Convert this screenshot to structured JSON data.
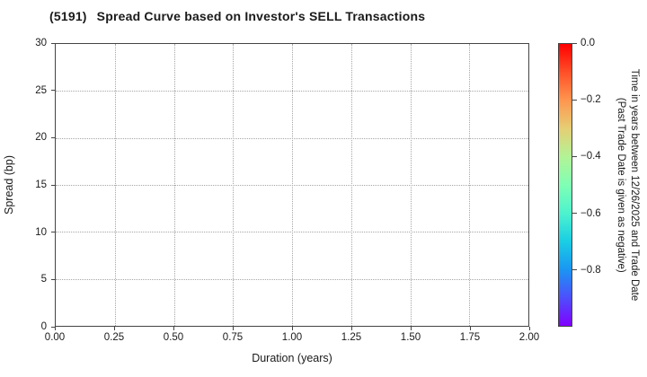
{
  "chart_data": {
    "type": "scatter",
    "title_code": "(5191)",
    "title_text": "Spread Curve based on Investor's SELL Transactions",
    "xlabel": "Duration (years)",
    "ylabel": "Spread (bp)",
    "xlim": [
      0.0,
      2.0
    ],
    "ylim": [
      0,
      30
    ],
    "xticks": [
      0.0,
      0.25,
      0.5,
      0.75,
      1.0,
      1.25,
      1.5,
      1.75,
      2.0
    ],
    "xtick_labels": [
      "0.00",
      "0.25",
      "0.50",
      "0.75",
      "1.00",
      "1.25",
      "1.50",
      "1.75",
      "2.00"
    ],
    "yticks": [
      0,
      5,
      10,
      15,
      20,
      25,
      30
    ],
    "ytick_labels": [
      "0",
      "5",
      "10",
      "15",
      "20",
      "25",
      "30"
    ],
    "grid": true,
    "grid_style": "dotted",
    "points": [],
    "colorbar": {
      "label_line1": "Time in years between 12/26/2025 and Trade Date",
      "label_line2": "(Past Trade Date is given as negative)",
      "range": [
        0.0,
        -1.0
      ],
      "tick_values": [
        0.0,
        -0.2,
        -0.4,
        -0.6,
        -0.8
      ],
      "tick_labels": [
        "0.0",
        "−0.2",
        "−0.4",
        "−0.6",
        "−0.8"
      ],
      "colormap": "rainbow",
      "gradient_stops": [
        "#ff0000",
        "#ff4f28",
        "#ff964f",
        "#e6ce74",
        "#b3f396",
        "#80ffb4",
        "#4df3ce",
        "#1acee3",
        "#1a96f2",
        "#4d4ffc",
        "#8000ff"
      ]
    }
  }
}
